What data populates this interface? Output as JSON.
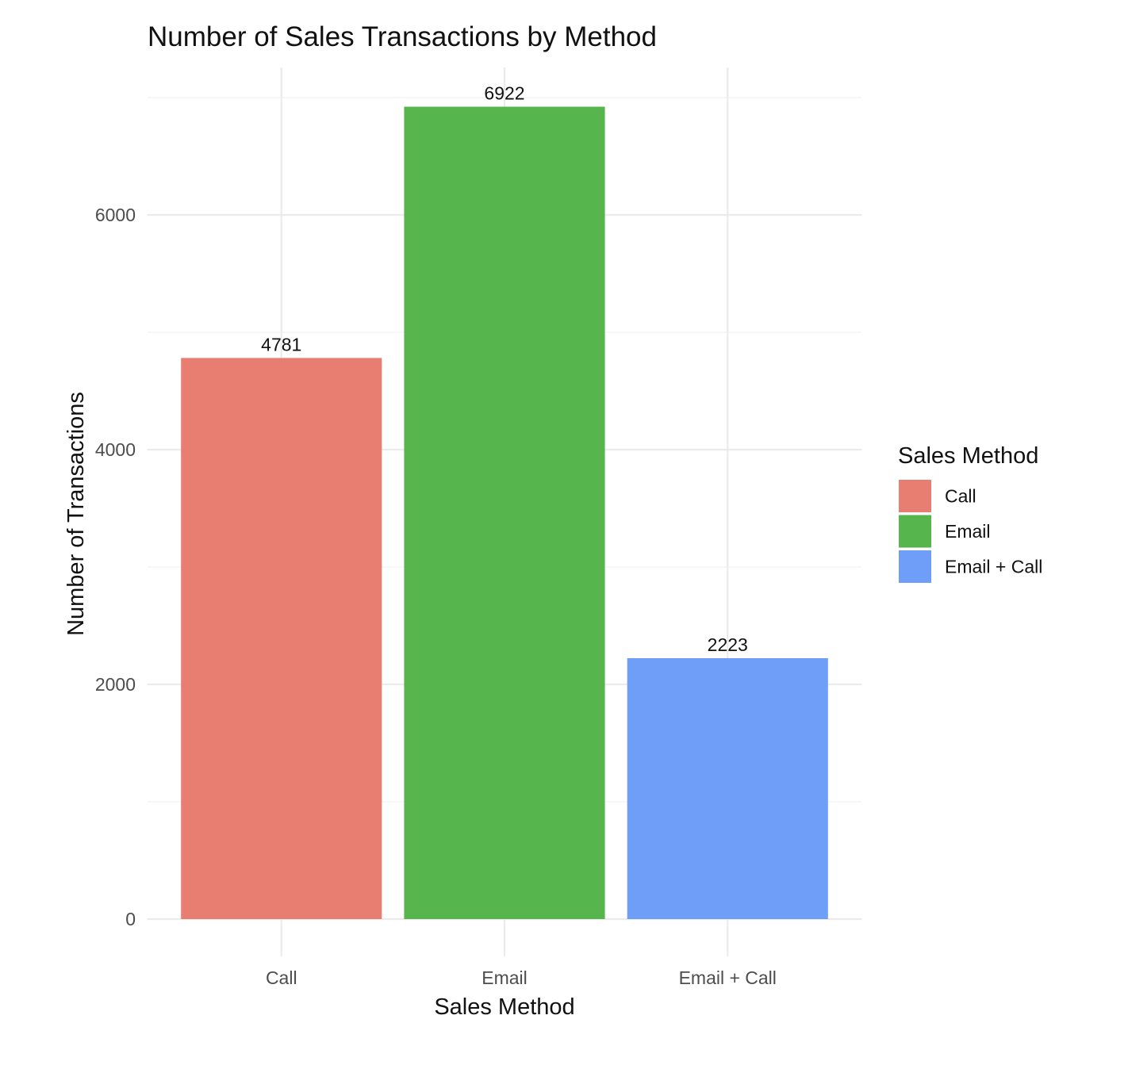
{
  "chart_data": {
    "type": "bar",
    "title": "Number of Sales Transactions by Method",
    "xlabel": "Sales Method",
    "ylabel": "Number of Transactions",
    "categories": [
      "Call",
      "Email",
      "Email + Call"
    ],
    "values": [
      4781,
      6922,
      2223
    ],
    "value_labels": [
      "4781",
      "6922",
      "2223"
    ],
    "colors": [
      "#E87D72",
      "#56B64D",
      "#6F9EF9"
    ],
    "ylim": [
      0,
      7200
    ],
    "yticks": [
      0,
      2000,
      4000,
      6000
    ],
    "ytick_labels": [
      "0",
      "2000",
      "4000",
      "6000"
    ],
    "grid": true,
    "legend": {
      "title": "Sales Method",
      "position": "right",
      "entries": [
        "Call",
        "Email",
        "Email + Call"
      ]
    }
  }
}
